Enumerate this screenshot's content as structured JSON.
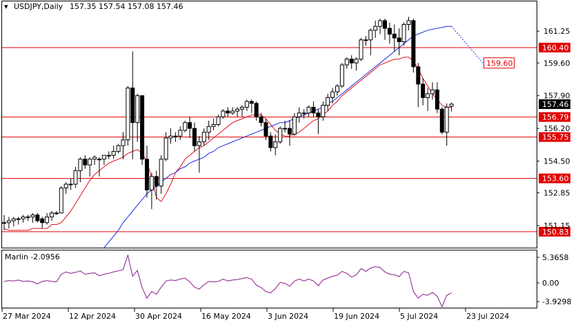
{
  "header": {
    "symbol": "USDJPY,Daily",
    "ohlc": "157.35 157.54 157.08 157.46"
  },
  "colors": {
    "bull_candle": "#ffffff",
    "bear_candle": "#000000",
    "ma_fast": "#e0101a",
    "ma_slow": "#1a2ee0",
    "level_line": "#e00000",
    "oscillator": "#8a1a8a",
    "axis_text": "#000000",
    "price_badge": "#000000",
    "price_badge_text": "#ffffff"
  },
  "chart_data": [
    {
      "type": "candlestick",
      "title": "USDJPY,Daily",
      "subtitle": "157.35 157.54 157.08 157.46",
      "ylim": [
        150.0,
        162.8
      ],
      "y_ticks": [
        161.25,
        159.6,
        157.9,
        156.2,
        154.5,
        152.85,
        151.15
      ],
      "x_ticks": [
        "27 Mar 2024",
        "12 Apr 2024",
        "30 Apr 2024",
        "16 May 2024",
        "3 Jun 2024",
        "19 Jun 2024",
        "5 Jul 2024",
        "23 Jul 2024"
      ],
      "grid": false,
      "levels": [
        {
          "value": 160.4,
          "label": "160.40"
        },
        {
          "value": 156.79,
          "label": "156.79"
        },
        {
          "value": 155.75,
          "label": "155.75"
        },
        {
          "value": 153.6,
          "label": "153.60"
        },
        {
          "value": 150.83,
          "label": "150.83"
        }
      ],
      "ma_projection_label": "159.60",
      "last_price_label": "157.46",
      "candles": [
        [
          151.3,
          151.7,
          150.9,
          151.3
        ],
        [
          151.3,
          151.6,
          151.0,
          151.4
        ],
        [
          151.4,
          151.6,
          151.1,
          151.5
        ],
        [
          151.5,
          151.6,
          151.2,
          151.5
        ],
        [
          151.5,
          151.7,
          151.3,
          151.6
        ],
        [
          151.6,
          151.7,
          151.4,
          151.6
        ],
        [
          151.6,
          151.8,
          151.3,
          151.7
        ],
        [
          151.7,
          151.8,
          151.3,
          151.4
        ],
        [
          151.5,
          151.6,
          151.0,
          151.3
        ],
        [
          151.3,
          151.8,
          151.2,
          151.6
        ],
        [
          151.6,
          151.9,
          151.4,
          151.8
        ],
        [
          151.8,
          151.9,
          151.7,
          151.8
        ],
        [
          151.8,
          153.2,
          151.8,
          153.1
        ],
        [
          153.1,
          153.4,
          152.8,
          153.3
        ],
        [
          153.3,
          153.6,
          153.0,
          153.3
        ],
        [
          153.3,
          154.2,
          153.1,
          154.0
        ],
        [
          154.0,
          154.7,
          153.4,
          154.6
        ],
        [
          154.6,
          154.8,
          154.1,
          154.3
        ],
        [
          154.3,
          154.7,
          153.7,
          154.6
        ],
        [
          154.6,
          154.8,
          154.3,
          154.7
        ],
        [
          154.6,
          154.7,
          153.7,
          154.6
        ],
        [
          154.6,
          154.8,
          154.3,
          154.8
        ],
        [
          154.8,
          155.0,
          154.6,
          154.8
        ],
        [
          154.8,
          155.3,
          154.6,
          155.0
        ],
        [
          155.0,
          155.4,
          154.9,
          155.3
        ],
        [
          155.3,
          156.0,
          154.6,
          155.6
        ],
        [
          155.6,
          158.4,
          155.3,
          158.3
        ],
        [
          158.3,
          160.2,
          154.6,
          156.5
        ],
        [
          156.5,
          158.0,
          155.5,
          157.9
        ],
        [
          157.9,
          157.9,
          154.3,
          154.6
        ],
        [
          154.6,
          155.3,
          152.6,
          153.0
        ],
        [
          153.0,
          153.9,
          152.0,
          153.7
        ],
        [
          153.7,
          154.0,
          152.5,
          153.2
        ],
        [
          153.2,
          154.8,
          152.8,
          154.6
        ],
        [
          154.6,
          156.0,
          154.5,
          155.7
        ],
        [
          155.7,
          156.2,
          155.4,
          155.8
        ],
        [
          155.8,
          156.0,
          155.5,
          155.8
        ],
        [
          155.8,
          156.3,
          155.6,
          156.1
        ],
        [
          156.1,
          156.6,
          156.0,
          156.5
        ],
        [
          156.5,
          156.8,
          155.7,
          156.2
        ],
        [
          156.2,
          156.5,
          155.0,
          155.3
        ],
        [
          155.3,
          155.8,
          153.9,
          155.5
        ],
        [
          155.5,
          156.2,
          155.3,
          156.0
        ],
        [
          156.0,
          156.6,
          155.6,
          156.3
        ],
        [
          156.3,
          156.7,
          156.1,
          156.4
        ],
        [
          156.4,
          156.9,
          156.3,
          156.8
        ],
        [
          156.8,
          157.2,
          156.7,
          157.1
        ],
        [
          157.1,
          157.3,
          156.8,
          157.0
        ],
        [
          157.0,
          157.3,
          156.9,
          157.1
        ],
        [
          157.1,
          157.3,
          156.8,
          157.2
        ],
        [
          157.2,
          157.4,
          156.8,
          157.3
        ],
        [
          157.3,
          157.7,
          157.1,
          157.6
        ],
        [
          157.6,
          157.7,
          157.0,
          157.5
        ],
        [
          157.5,
          157.6,
          156.6,
          156.8
        ],
        [
          156.8,
          157.0,
          156.3,
          156.5
        ],
        [
          156.5,
          156.7,
          155.6,
          155.8
        ],
        [
          155.8,
          156.0,
          155.0,
          155.2
        ],
        [
          155.2,
          155.9,
          154.8,
          155.5
        ],
        [
          155.5,
          156.3,
          155.4,
          156.2
        ],
        [
          156.2,
          156.6,
          156.0,
          156.2
        ],
        [
          156.2,
          156.6,
          155.3,
          155.9
        ],
        [
          155.9,
          157.0,
          155.8,
          156.8
        ],
        [
          156.8,
          157.3,
          156.5,
          157.0
        ],
        [
          157.0,
          157.2,
          156.7,
          157.0
        ],
        [
          157.0,
          157.4,
          156.8,
          157.3
        ],
        [
          157.3,
          157.6,
          156.8,
          157.0
        ],
        [
          157.0,
          157.2,
          155.9,
          156.8
        ],
        [
          156.8,
          157.6,
          156.6,
          157.4
        ],
        [
          157.4,
          158.0,
          157.1,
          157.8
        ],
        [
          157.8,
          158.3,
          157.5,
          158.1
        ],
        [
          158.1,
          158.5,
          157.9,
          158.4
        ],
        [
          158.4,
          159.6,
          158.3,
          159.5
        ],
        [
          159.5,
          159.9,
          159.3,
          159.8
        ],
        [
          159.8,
          160.0,
          159.3,
          159.6
        ],
        [
          159.6,
          159.9,
          159.2,
          159.8
        ],
        [
          159.8,
          160.9,
          159.7,
          160.8
        ],
        [
          160.8,
          161.0,
          160.5,
          160.8
        ],
        [
          160.8,
          161.4,
          160.0,
          161.3
        ],
        [
          161.3,
          161.8,
          160.9,
          161.5
        ],
        [
          161.5,
          161.9,
          161.1,
          161.8
        ],
        [
          161.8,
          161.9,
          160.8,
          161.4
        ],
        [
          161.4,
          161.7,
          160.6,
          161.1
        ],
        [
          161.1,
          161.6,
          160.2,
          160.9
        ],
        [
          160.9,
          161.4,
          160.0,
          160.7
        ],
        [
          160.7,
          161.7,
          160.5,
          161.6
        ],
        [
          161.6,
          162.0,
          161.3,
          161.8
        ],
        [
          161.8,
          161.9,
          159.1,
          159.4
        ],
        [
          159.4,
          159.6,
          157.3,
          158.5
        ],
        [
          158.5,
          158.8,
          157.4,
          157.8
        ],
        [
          157.8,
          158.3,
          157.1,
          158.0
        ],
        [
          158.0,
          158.6,
          157.7,
          158.2
        ],
        [
          158.2,
          158.6,
          157.0,
          157.2
        ],
        [
          157.2,
          157.3,
          155.9,
          156.0
        ],
        [
          156.0,
          157.5,
          155.3,
          157.3
        ],
        [
          157.35,
          157.54,
          157.08,
          157.46
        ]
      ],
      "ma_fast": [
        151.0,
        150.9,
        150.9,
        150.9,
        150.9,
        150.9,
        151.0,
        151.0,
        151.0,
        151.0,
        151.2,
        151.2,
        151.3,
        151.6,
        151.9,
        152.3,
        152.7,
        153.1,
        153.5,
        153.8,
        154.0,
        154.2,
        154.4,
        154.5,
        154.6,
        154.7,
        154.9,
        155.0,
        155.1,
        154.9,
        154.5,
        153.6,
        152.6,
        152.4,
        152.8,
        153.3,
        153.9,
        154.2,
        154.6,
        154.8,
        155.0,
        155.2,
        155.3,
        155.5,
        155.7,
        155.9,
        156.1,
        156.3,
        156.5,
        156.6,
        156.7,
        156.8,
        156.9,
        156.9,
        156.9,
        156.7,
        156.4,
        156.1,
        155.9,
        155.8,
        155.8,
        155.9,
        156.0,
        156.2,
        156.4,
        156.6,
        156.7,
        156.9,
        157.1,
        157.4,
        157.6,
        157.9,
        158.1,
        158.3,
        158.5,
        158.7,
        158.9,
        159.1,
        159.3,
        159.5,
        159.6,
        159.7,
        159.8,
        159.8,
        159.9,
        159.9,
        159.7,
        159.3,
        158.8,
        158.4,
        158.0,
        157.7,
        157.4,
        157.3,
        157.3
      ],
      "ma_slow": [
        null,
        null,
        null,
        null,
        null,
        null,
        null,
        null,
        null,
        null,
        null,
        null,
        null,
        null,
        null,
        null,
        null,
        null,
        null,
        null,
        null,
        150.0,
        150.3,
        150.6,
        150.9,
        151.3,
        151.6,
        151.9,
        152.2,
        152.5,
        152.8,
        153.0,
        153.2,
        153.4,
        153.6,
        153.8,
        153.9,
        154.1,
        154.2,
        154.4,
        154.5,
        154.6,
        154.7,
        154.9,
        155.0,
        155.2,
        155.3,
        155.4,
        155.5,
        155.6,
        155.7,
        155.8,
        155.9,
        156.0,
        156.1,
        156.2,
        156.3,
        156.4,
        156.5,
        156.5,
        156.6,
        156.7,
        156.8,
        156.9,
        157.0,
        157.1,
        157.2,
        157.3,
        157.5,
        157.6,
        157.8,
        158.0,
        158.2,
        158.4,
        158.6,
        158.8,
        159.0,
        159.2,
        159.4,
        159.6,
        159.8,
        160.0,
        160.2,
        160.4,
        160.6,
        160.8,
        161.0,
        161.1,
        161.2,
        161.3,
        161.35,
        161.4,
        161.45,
        161.5,
        161.5
      ],
      "ma_slow_projection": [
        159.6,
        159.6
      ]
    },
    {
      "type": "line",
      "title": "Marlin -2.0956",
      "ylim": [
        -5.2,
        6.8
      ],
      "y_ticks": [
        5.3658,
        0.0,
        -3.9298
      ],
      "y_tick_labels": [
        "5.3658",
        "0.00",
        "-3.9298"
      ],
      "series": [
        {
          "values": [
            0.3,
            0.5,
            0.4,
            0.6,
            0.3,
            0.4,
            0.2,
            -0.2,
            0.3,
            0.5,
            0.3,
            0.2,
            1.8,
            2.3,
            2.0,
            2.2,
            2.5,
            1.8,
            2.0,
            2.1,
            1.5,
            1.8,
            2.0,
            2.3,
            2.5,
            2.8,
            5.8,
            1.4,
            2.6,
            -1.0,
            -3.2,
            -1.8,
            -2.4,
            -0.9,
            0.4,
            0.6,
            0.5,
            0.8,
            1.0,
            0.2,
            -0.9,
            -1.3,
            -0.4,
            0.3,
            0.2,
            0.3,
            0.8,
            0.4,
            0.6,
            0.7,
            0.9,
            1.1,
            0.8,
            -0.5,
            -1.0,
            -1.8,
            -2.1,
            -1.2,
            0.1,
            -0.1,
            -0.7,
            0.4,
            0.8,
            0.4,
            0.8,
            0.4,
            -0.6,
            0.6,
            1.0,
            1.4,
            1.6,
            2.4,
            2.0,
            1.2,
            1.7,
            3.0,
            2.4,
            3.1,
            3.4,
            3.2,
            2.3,
            1.8,
            1.7,
            1.3,
            2.4,
            2.1,
            -1.8,
            -3.2,
            -2.4,
            -2.6,
            -2.0,
            -2.8,
            -5.0,
            -2.6,
            -2.1
          ]
        }
      ]
    }
  ]
}
